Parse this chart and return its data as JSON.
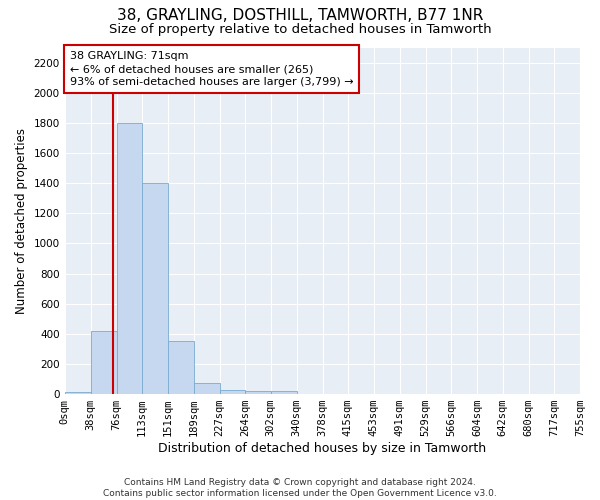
{
  "title1": "38, GRAYLING, DOSTHILL, TAMWORTH, B77 1NR",
  "title2": "Size of property relative to detached houses in Tamworth",
  "xlabel": "Distribution of detached houses by size in Tamworth",
  "ylabel": "Number of detached properties",
  "bin_edges": [
    0,
    38,
    76,
    113,
    151,
    189,
    227,
    264,
    302,
    340,
    378,
    415,
    453,
    491,
    529,
    566,
    604,
    642,
    680,
    717,
    755
  ],
  "bar_heights": [
    15,
    420,
    1800,
    1400,
    350,
    75,
    30,
    20,
    20,
    0,
    0,
    0,
    0,
    0,
    0,
    0,
    0,
    0,
    0,
    0
  ],
  "bar_color": "#c5d8f0",
  "bar_edge_color": "#7aaad0",
  "property_size": 71,
  "vline_color": "#cc0000",
  "annotation_line1": "38 GRAYLING: 71sqm",
  "annotation_line2": "← 6% of detached houses are smaller (265)",
  "annotation_line3": "93% of semi-detached houses are larger (3,799) →",
  "ylim": [
    0,
    2300
  ],
  "yticks": [
    0,
    200,
    400,
    600,
    800,
    1000,
    1200,
    1400,
    1600,
    1800,
    2000,
    2200
  ],
  "plot_bg_color": "#e8eef5",
  "grid_color": "#ffffff",
  "footer1": "Contains HM Land Registry data © Crown copyright and database right 2024.",
  "footer2": "Contains public sector information licensed under the Open Government Licence v3.0.",
  "title1_fontsize": 11,
  "title2_fontsize": 9.5,
  "xlabel_fontsize": 9,
  "ylabel_fontsize": 8.5,
  "tick_fontsize": 7.5,
  "annot_fontsize": 8,
  "footer_fontsize": 6.5
}
